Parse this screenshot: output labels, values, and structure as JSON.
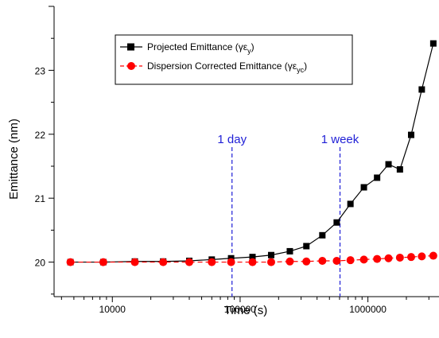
{
  "chart_data": {
    "type": "line",
    "xlabel": "Time (s)",
    "ylabel": "Emittance (nm)",
    "xscale": "log",
    "xlim": [
      3500,
      3600000
    ],
    "ylim": [
      19.46,
      24.0
    ],
    "x_ticks": [
      10000,
      100000,
      1000000
    ],
    "x_tick_labels": [
      "10000",
      "100000",
      "1000000"
    ],
    "y_ticks": [
      20,
      21,
      22,
      23
    ],
    "y_tick_labels": [
      "20",
      "21",
      "22",
      "23"
    ],
    "grid": false,
    "legend_position": "top-center",
    "series": [
      {
        "name": "Projected Emittance (γε",
        "name_sub": "y",
        "name_tail": ")",
        "color": "#000000",
        "marker": "square",
        "line_style": "solid",
        "x": [
          4700,
          8500,
          15000,
          25000,
          40000,
          60000,
          85000,
          125000,
          175000,
          245000,
          330000,
          440000,
          570000,
          730000,
          930000,
          1180000,
          1450000,
          1780000,
          2180000,
          2640000,
          3250000
        ],
        "values": [
          20.0,
          20.0,
          20.01,
          20.01,
          20.02,
          20.04,
          20.06,
          20.08,
          20.11,
          20.17,
          20.25,
          20.42,
          20.62,
          20.91,
          21.17,
          21.32,
          21.53,
          21.45,
          21.99,
          22.7,
          23.42
        ]
      },
      {
        "name": "Dispersion Corrected Emittance (γε",
        "name_sub": "yc",
        "name_tail": ")",
        "color": "#ff0000",
        "marker": "circle",
        "line_style": "dashed",
        "x": [
          4700,
          8500,
          15000,
          25000,
          40000,
          60000,
          85000,
          125000,
          175000,
          245000,
          330000,
          440000,
          570000,
          730000,
          930000,
          1180000,
          1450000,
          1780000,
          2180000,
          2640000,
          3250000
        ],
        "values": [
          20.0,
          20.0,
          20.0,
          20.0,
          20.0,
          20.0,
          20.0,
          20.0,
          20.0,
          20.01,
          20.01,
          20.02,
          20.02,
          20.03,
          20.04,
          20.05,
          20.06,
          20.07,
          20.08,
          20.09,
          20.1
        ]
      }
    ],
    "vertical_lines": [
      {
        "x": 86400,
        "label": "1 day",
        "color": "#1f1fd6"
      },
      {
        "x": 604800,
        "label": "1 week",
        "color": "#1f1fd6"
      }
    ]
  }
}
